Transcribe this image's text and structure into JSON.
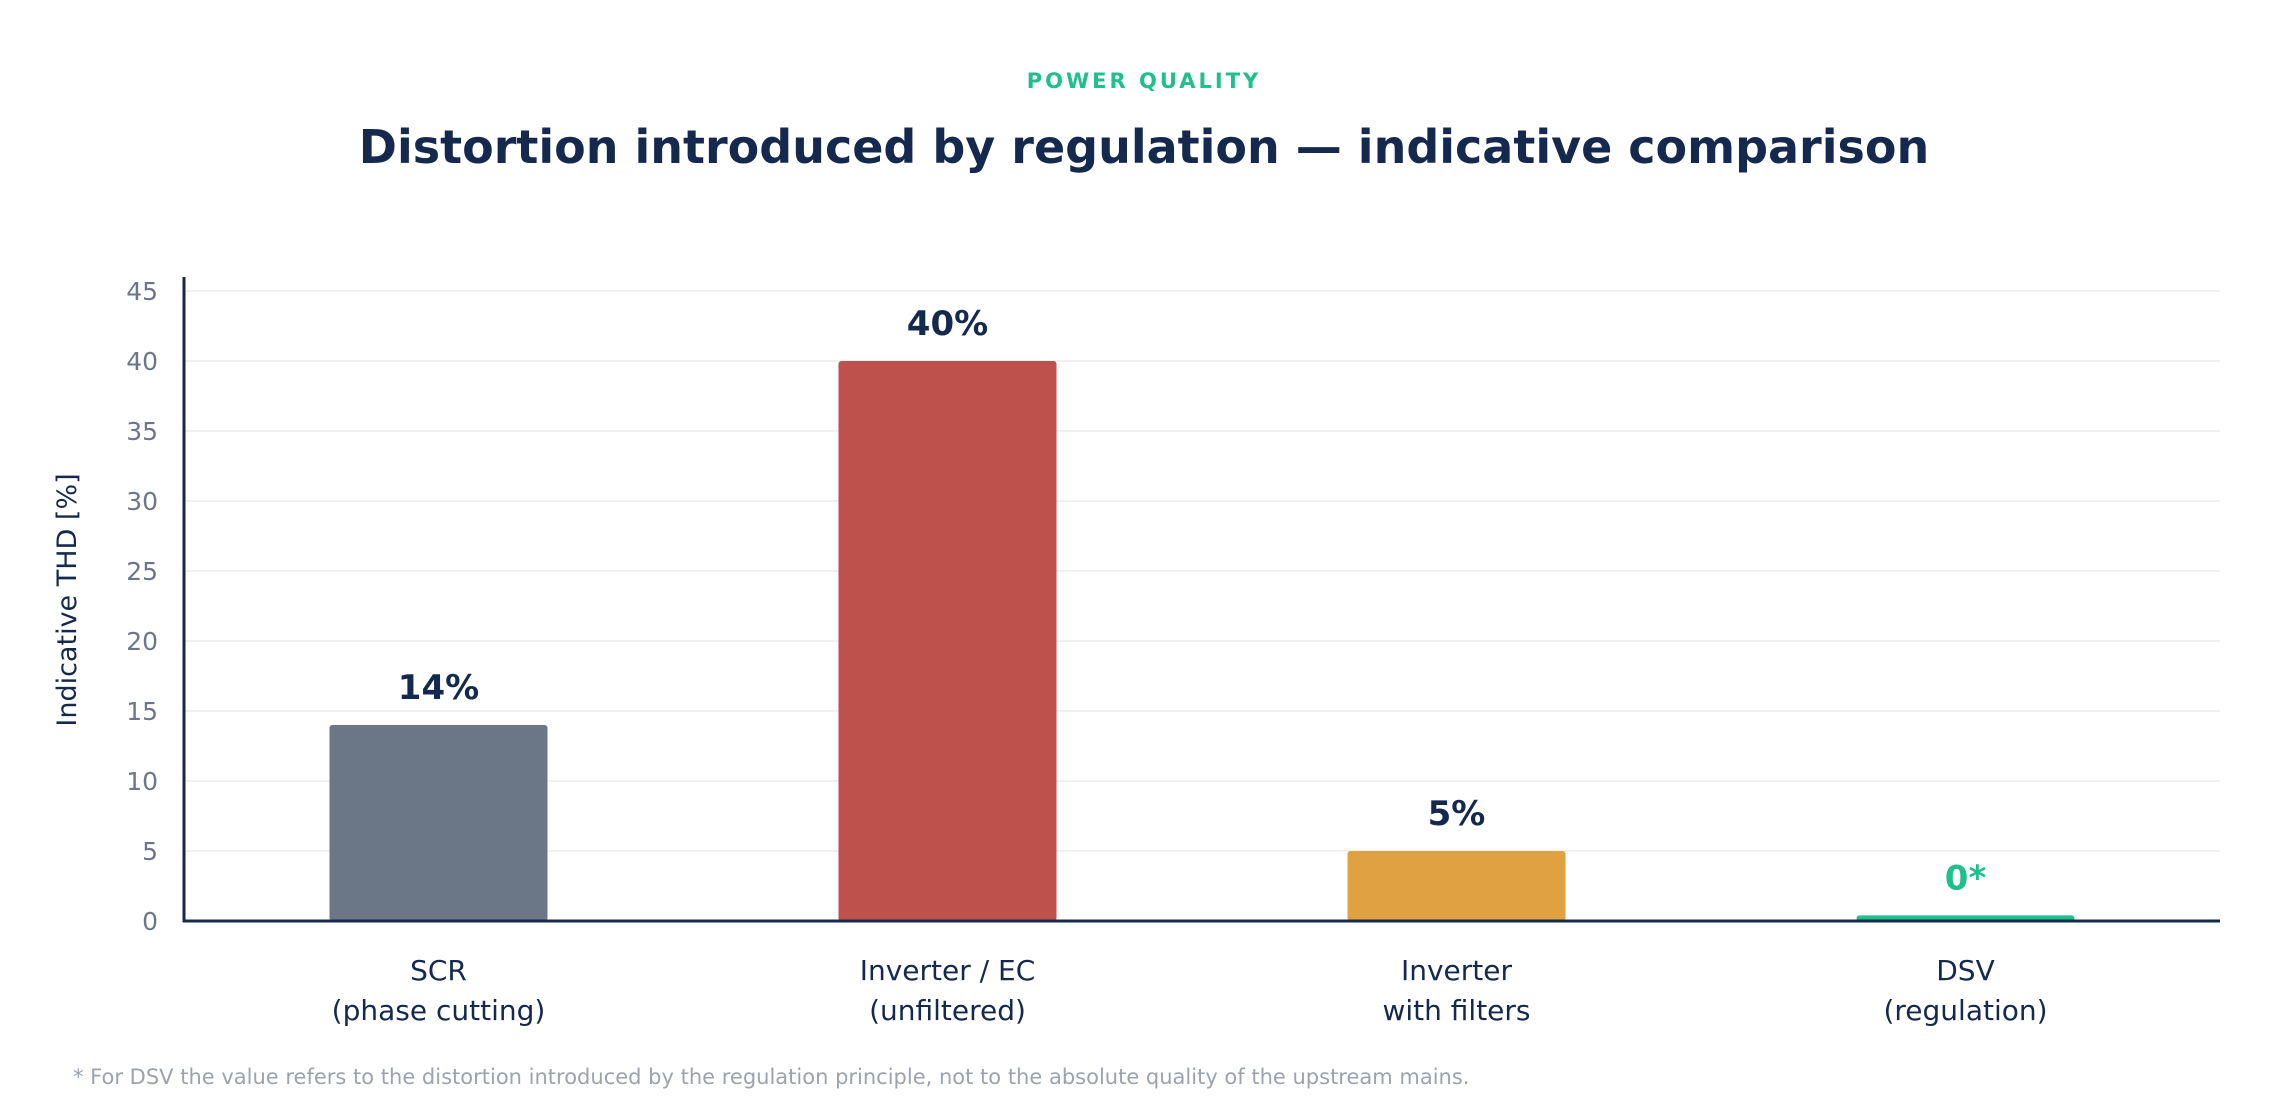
{
  "colors": {
    "background": "#ffffff",
    "accent": "#1fc08e",
    "title": "#14294d",
    "axis": "#14294d",
    "tick_text": "#6b7789",
    "grid": "#ececef",
    "category_text": "#14294d",
    "footnote_text": "#9ca3ae"
  },
  "chart_data": {
    "type": "bar",
    "eyebrow": "POWER QUALITY",
    "title": "Distortion introduced by regulation — indicative comparison",
    "xlabel": "",
    "ylabel": "Indicative THD [%]",
    "ylim": [
      0,
      45
    ],
    "yticks": [
      0,
      5,
      10,
      15,
      20,
      25,
      30,
      35,
      40,
      45
    ],
    "grid": true,
    "categories": [
      [
        "SCR",
        "(phase cutting)"
      ],
      [
        "Inverter / EC",
        "(unfiltered)"
      ],
      [
        "Inverter",
        "with filters"
      ],
      [
        "DSV",
        "(regulation)"
      ]
    ],
    "values": [
      14,
      40,
      5,
      0.4
    ],
    "data_labels": [
      "14%",
      "40%",
      "5%",
      "0*"
    ],
    "bar_colors": [
      "#6b7686",
      "#bf514d",
      "#e0a241",
      "#1fc08e"
    ],
    "data_label_colors": [
      "#14294d",
      "#14294d",
      "#14294d",
      "#1fc08e"
    ],
    "footnote": "* For DSV the value refers to the distortion introduced by the regulation principle, not to the absolute quality of the upstream mains."
  }
}
